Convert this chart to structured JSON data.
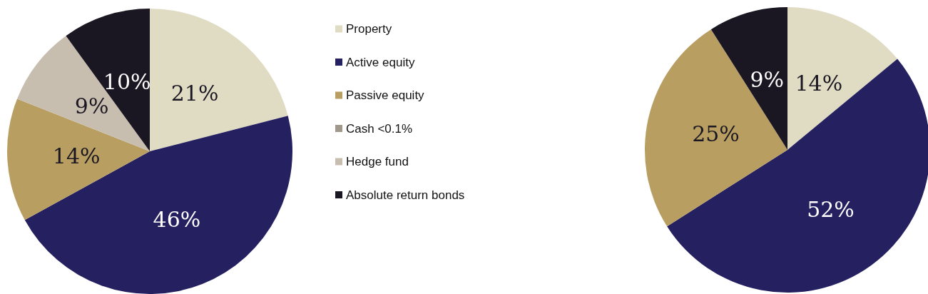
{
  "chart_data": [
    {
      "type": "pie",
      "categories": [
        "Property",
        "Active equity",
        "Passive equity",
        "Cash <0.1%",
        "Hedge fund",
        "Absolute return bonds"
      ],
      "values": [
        21,
        46,
        14,
        0,
        9,
        10
      ],
      "value_labels": [
        "21%",
        "46%",
        "14%",
        null,
        "9%",
        "10%"
      ],
      "colors": [
        "#e0dcc4",
        "#252060",
        "#b89e60",
        "#a0988a",
        "#c8beb0",
        "#1a1622"
      ],
      "legend": "right"
    },
    {
      "type": "pie",
      "categories": [
        null,
        null,
        null,
        null
      ],
      "values": [
        14,
        52,
        25,
        9
      ],
      "value_labels": [
        "14%",
        "52%",
        "25%",
        "9%"
      ],
      "colors": [
        "#e0dcc4",
        "#252060",
        "#b89e60",
        "#1a1622"
      ]
    }
  ]
}
